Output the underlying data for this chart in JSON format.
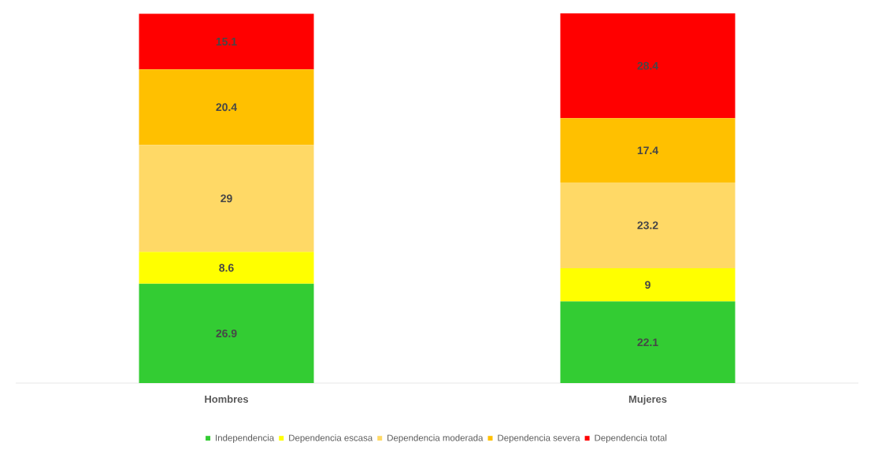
{
  "chart_data": {
    "type": "bar",
    "stacked": true,
    "data_labels": true,
    "legend": "bottom",
    "categories": [
      "Hombres",
      "Mujeres"
    ],
    "series": [
      {
        "name": "Independencia",
        "color": "#33cc33",
        "values": [
          26.9,
          22.1
        ]
      },
      {
        "name": "Dependencia escasa",
        "color": "#ffff00",
        "values": [
          8.6,
          9
        ]
      },
      {
        "name": "Dependencia moderada",
        "color": "#ffd966",
        "values": [
          29,
          23.2
        ]
      },
      {
        "name": "Dependencia severa",
        "color": "#ffc000",
        "values": [
          20.4,
          17.4
        ]
      },
      {
        "name": "Dependencia total",
        "color": "#ff0000",
        "values": [
          15.1,
          28.4
        ]
      }
    ]
  }
}
